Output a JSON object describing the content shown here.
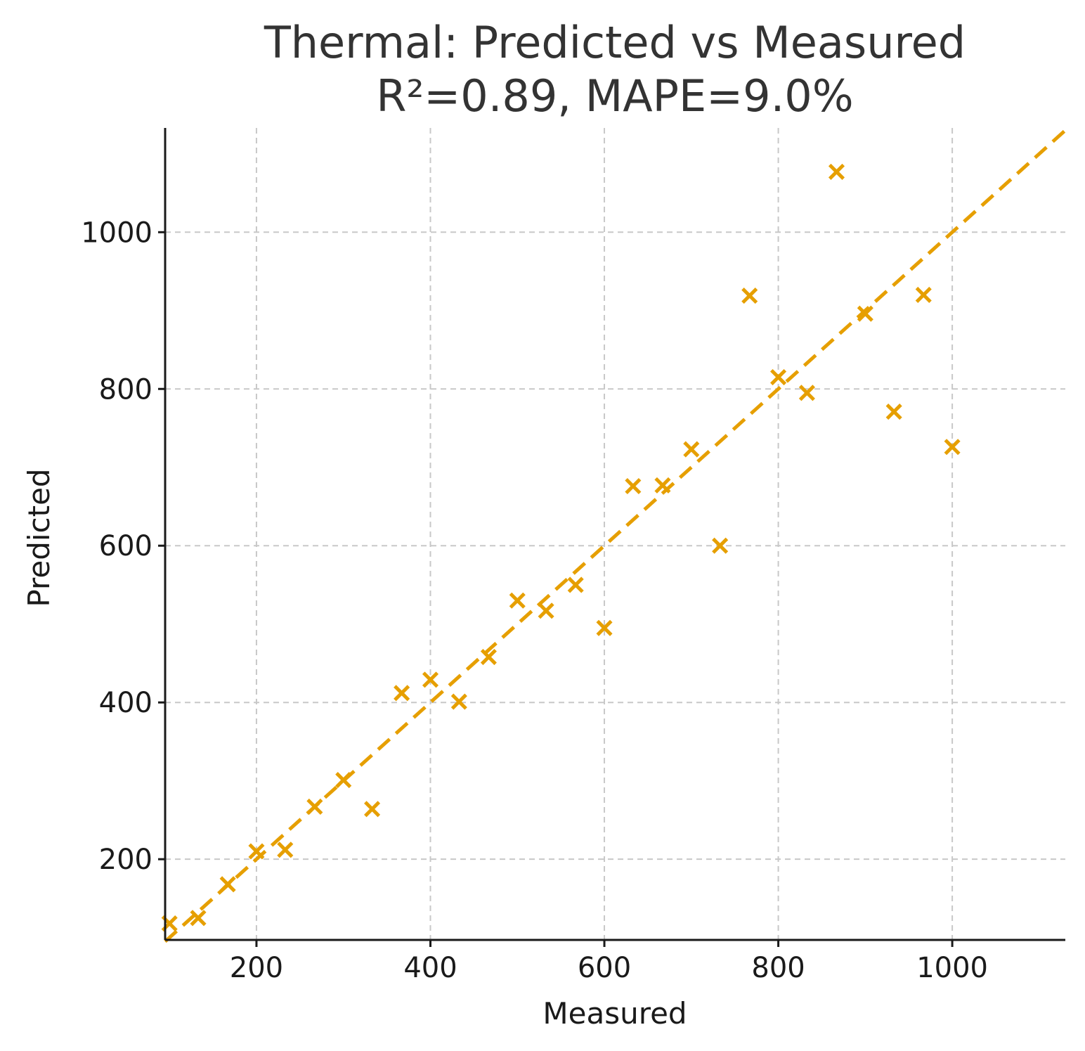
{
  "chart_data": {
    "type": "scatter",
    "title": "Thermal: Predicted vs Measured",
    "subtitle": "R²=0.89, MAPE=9.0%",
    "xlabel": "Measured",
    "ylabel": "Predicted",
    "xlim": [
      95,
      1130
    ],
    "ylim": [
      97,
      1133
    ],
    "xticks": [
      200,
      400,
      600,
      800,
      1000
    ],
    "yticks": [
      200,
      400,
      600,
      800,
      1000
    ],
    "xtick_labels": [
      "200",
      "400",
      "600",
      "800",
      "1000"
    ],
    "ytick_labels": [
      "200",
      "400",
      "600",
      "800",
      "1000"
    ],
    "grid": true,
    "colors": {
      "marker": "#E69F00",
      "reference_line": "#E69F00"
    },
    "marker": "x",
    "reference_line": {
      "style": "dashed",
      "from": [
        95,
        95
      ],
      "to": [
        1130,
        1130
      ]
    },
    "points": [
      {
        "x": 100,
        "y": 118
      },
      {
        "x": 133,
        "y": 125
      },
      {
        "x": 167,
        "y": 168
      },
      {
        "x": 200,
        "y": 210
      },
      {
        "x": 233,
        "y": 212
      },
      {
        "x": 267,
        "y": 267
      },
      {
        "x": 300,
        "y": 301
      },
      {
        "x": 333,
        "y": 264
      },
      {
        "x": 367,
        "y": 412
      },
      {
        "x": 400,
        "y": 429
      },
      {
        "x": 433,
        "y": 401
      },
      {
        "x": 467,
        "y": 458
      },
      {
        "x": 500,
        "y": 530
      },
      {
        "x": 533,
        "y": 517
      },
      {
        "x": 567,
        "y": 550
      },
      {
        "x": 600,
        "y": 495
      },
      {
        "x": 633,
        "y": 676
      },
      {
        "x": 667,
        "y": 677
      },
      {
        "x": 700,
        "y": 723
      },
      {
        "x": 733,
        "y": 600
      },
      {
        "x": 767,
        "y": 919
      },
      {
        "x": 800,
        "y": 815
      },
      {
        "x": 833,
        "y": 795
      },
      {
        "x": 867,
        "y": 1077
      },
      {
        "x": 900,
        "y": 896
      },
      {
        "x": 933,
        "y": 771
      },
      {
        "x": 967,
        "y": 920
      },
      {
        "x": 1000,
        "y": 726
      }
    ]
  }
}
